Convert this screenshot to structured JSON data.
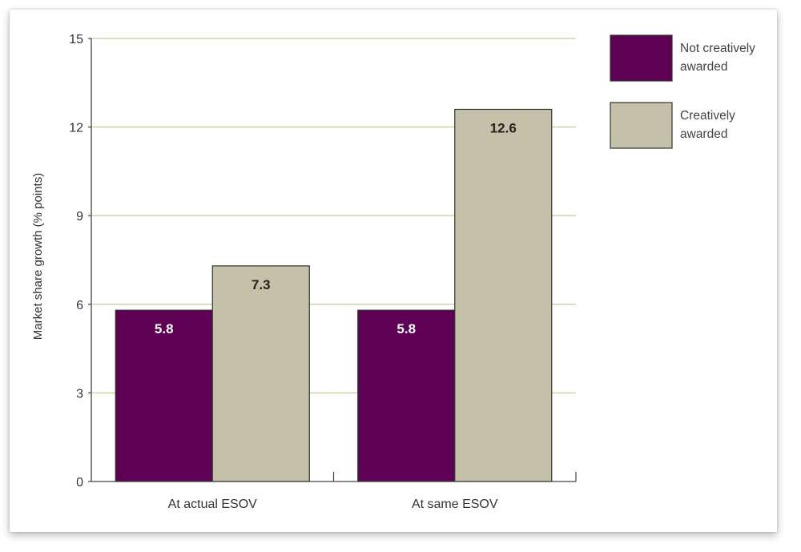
{
  "chart_data": {
    "type": "bar",
    "categories": [
      "At actual ESOV",
      "At same ESOV"
    ],
    "series": [
      {
        "name": "Not creatively awarded",
        "values": [
          5.8,
          5.8
        ],
        "color": "#5e0054",
        "label_color": "#ffffff"
      },
      {
        "name": "Creatively awarded",
        "values": [
          7.3,
          12.6
        ],
        "color": "#c4c1a8",
        "label_color": "#222222"
      }
    ],
    "data_labels": [
      [
        "5.8",
        "5.8"
      ],
      [
        "7.3",
        "12.6"
      ]
    ],
    "title": "",
    "xlabel": "",
    "ylabel": "Market share growth (% points)",
    "ylim": [
      0,
      15
    ],
    "yticks": [
      0,
      3,
      6,
      9,
      12,
      15
    ],
    "ytick_labels": [
      "0",
      "3",
      "6",
      "9",
      "12",
      "15"
    ],
    "grid": true,
    "grid_color": "#d6d3ae",
    "legend_position": "top-right",
    "legend_entries": [
      {
        "lines": [
          "Not creatively",
          "awarded"
        ],
        "color": "#5e0054"
      },
      {
        "lines": [
          "Creatively",
          "awarded"
        ],
        "color": "#c4c1a8"
      }
    ]
  }
}
